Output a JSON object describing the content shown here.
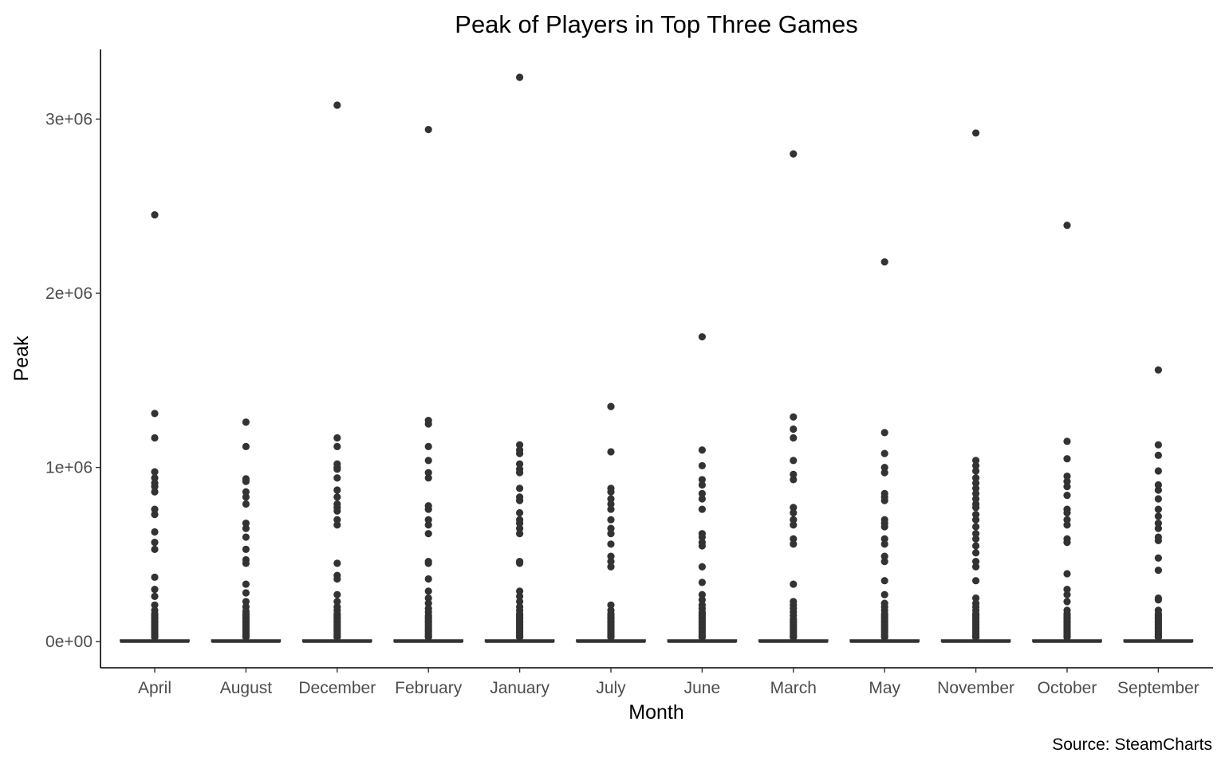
{
  "chart_data": {
    "type": "boxplot",
    "title": "Peak of Players in Top Three Games",
    "xlabel": "Month",
    "ylabel": "Peak",
    "caption": "Source: SteamCharts",
    "ylim": [
      -150000,
      3400000
    ],
    "yticks": [
      0,
      1000000,
      2000000,
      3000000
    ],
    "ytick_labels": [
      "0e+00",
      "1e+06",
      "2e+06",
      "3e+06"
    ],
    "categories": [
      "April",
      "August",
      "December",
      "February",
      "January",
      "July",
      "June",
      "March",
      "May",
      "November",
      "October",
      "September"
    ],
    "boxes": [
      {
        "month": "April",
        "q1": 0,
        "median": 2000,
        "q3": 10000,
        "whisker_low": 0,
        "whisker_high": 20000
      },
      {
        "month": "August",
        "q1": 0,
        "median": 2000,
        "q3": 10000,
        "whisker_low": 0,
        "whisker_high": 20000
      },
      {
        "month": "December",
        "q1": 0,
        "median": 2000,
        "q3": 10000,
        "whisker_low": 0,
        "whisker_high": 20000
      },
      {
        "month": "February",
        "q1": 0,
        "median": 2000,
        "q3": 10000,
        "whisker_low": 0,
        "whisker_high": 20000
      },
      {
        "month": "January",
        "q1": 0,
        "median": 2000,
        "q3": 10000,
        "whisker_low": 0,
        "whisker_high": 20000
      },
      {
        "month": "July",
        "q1": 0,
        "median": 2000,
        "q3": 10000,
        "whisker_low": 0,
        "whisker_high": 20000
      },
      {
        "month": "June",
        "q1": 0,
        "median": 2000,
        "q3": 10000,
        "whisker_low": 0,
        "whisker_high": 20000
      },
      {
        "month": "March",
        "q1": 0,
        "median": 2000,
        "q3": 10000,
        "whisker_low": 0,
        "whisker_high": 20000
      },
      {
        "month": "May",
        "q1": 0,
        "median": 2000,
        "q3": 10000,
        "whisker_low": 0,
        "whisker_high": 20000
      },
      {
        "month": "November",
        "q1": 0,
        "median": 2000,
        "q3": 10000,
        "whisker_low": 0,
        "whisker_high": 20000
      },
      {
        "month": "October",
        "q1": 0,
        "median": 2000,
        "q3": 10000,
        "whisker_low": 0,
        "whisker_high": 20000
      },
      {
        "month": "September",
        "q1": 0,
        "median": 2000,
        "q3": 10000,
        "whisker_low": 0,
        "whisker_high": 20000
      }
    ],
    "outliers": [
      [
        2450000,
        1310000,
        1170000,
        975000,
        940000,
        910000,
        890000,
        860000,
        760000,
        730000,
        630000,
        570000,
        530000,
        370000,
        300000,
        260000,
        210000,
        180000,
        160000,
        150000,
        140000,
        130000,
        120000,
        110000,
        100000,
        90000,
        80000,
        70000,
        60000,
        50000,
        40000,
        30000,
        25000
      ],
      [
        1260000,
        1120000,
        935000,
        920000,
        860000,
        830000,
        790000,
        680000,
        650000,
        600000,
        530000,
        470000,
        450000,
        330000,
        280000,
        230000,
        200000,
        175000,
        160000,
        150000,
        140000,
        130000,
        120000,
        110000,
        100000,
        90000,
        80000,
        70000,
        60000,
        50000,
        40000,
        30000,
        25000
      ],
      [
        3080000,
        1170000,
        1120000,
        1020000,
        1000000,
        990000,
        940000,
        870000,
        830000,
        790000,
        770000,
        750000,
        700000,
        670000,
        450000,
        380000,
        360000,
        270000,
        230000,
        200000,
        180000,
        160000,
        150000,
        140000,
        130000,
        120000,
        110000,
        100000,
        90000,
        80000,
        70000,
        60000,
        50000,
        40000,
        30000,
        25000
      ],
      [
        2940000,
        1270000,
        1250000,
        1120000,
        1040000,
        970000,
        940000,
        780000,
        760000,
        700000,
        670000,
        620000,
        460000,
        450000,
        360000,
        290000,
        250000,
        220000,
        190000,
        170000,
        150000,
        140000,
        130000,
        120000,
        110000,
        100000,
        90000,
        80000,
        70000,
        60000,
        50000,
        40000,
        30000,
        25000
      ],
      [
        3240000,
        1130000,
        1100000,
        1080000,
        1020000,
        990000,
        970000,
        880000,
        830000,
        810000,
        740000,
        700000,
        680000,
        650000,
        620000,
        460000,
        450000,
        290000,
        260000,
        230000,
        200000,
        180000,
        160000,
        150000,
        140000,
        130000,
        120000,
        110000,
        100000,
        90000,
        80000,
        70000,
        60000,
        50000,
        40000,
        30000,
        25000
      ],
      [
        1350000,
        1090000,
        880000,
        860000,
        820000,
        790000,
        760000,
        700000,
        650000,
        620000,
        560000,
        490000,
        460000,
        430000,
        210000,
        180000,
        160000,
        150000,
        140000,
        130000,
        120000,
        110000,
        100000,
        90000,
        80000,
        70000,
        60000,
        50000,
        40000,
        30000,
        25000
      ],
      [
        1750000,
        1100000,
        1010000,
        930000,
        900000,
        850000,
        820000,
        760000,
        620000,
        600000,
        570000,
        550000,
        430000,
        340000,
        270000,
        240000,
        210000,
        190000,
        170000,
        160000,
        150000,
        140000,
        130000,
        120000,
        110000,
        100000,
        90000,
        80000,
        70000,
        60000,
        50000,
        40000,
        30000,
        25000
      ],
      [
        2800000,
        1290000,
        1220000,
        1170000,
        1040000,
        960000,
        930000,
        770000,
        740000,
        700000,
        670000,
        590000,
        560000,
        330000,
        230000,
        210000,
        190000,
        170000,
        150000,
        130000,
        120000,
        110000,
        100000,
        90000,
        80000,
        70000,
        60000,
        50000,
        40000,
        30000,
        25000
      ],
      [
        2180000,
        1200000,
        1080000,
        1000000,
        970000,
        850000,
        830000,
        810000,
        700000,
        680000,
        660000,
        590000,
        560000,
        490000,
        460000,
        350000,
        270000,
        220000,
        200000,
        180000,
        160000,
        150000,
        140000,
        130000,
        120000,
        110000,
        100000,
        90000,
        80000,
        70000,
        60000,
        50000,
        40000,
        30000,
        25000
      ],
      [
        2920000,
        1040000,
        1010000,
        980000,
        940000,
        910000,
        880000,
        850000,
        820000,
        790000,
        770000,
        730000,
        700000,
        660000,
        620000,
        590000,
        550000,
        510000,
        460000,
        430000,
        350000,
        250000,
        220000,
        200000,
        180000,
        160000,
        150000,
        140000,
        130000,
        120000,
        110000,
        100000,
        90000,
        80000,
        70000,
        60000,
        50000,
        40000,
        30000,
        25000
      ],
      [
        2390000,
        1150000,
        1050000,
        950000,
        920000,
        890000,
        840000,
        760000,
        740000,
        700000,
        670000,
        590000,
        570000,
        390000,
        300000,
        270000,
        230000,
        180000,
        160000,
        150000,
        140000,
        130000,
        120000,
        110000,
        100000,
        90000,
        80000,
        70000,
        60000,
        50000,
        40000,
        30000,
        25000
      ],
      [
        1560000,
        1130000,
        1070000,
        980000,
        900000,
        870000,
        820000,
        760000,
        720000,
        680000,
        650000,
        600000,
        580000,
        480000,
        410000,
        250000,
        240000,
        180000,
        160000,
        150000,
        140000,
        130000,
        120000,
        110000,
        100000,
        90000,
        80000,
        70000,
        60000,
        50000,
        40000,
        30000,
        25000
      ]
    ]
  }
}
